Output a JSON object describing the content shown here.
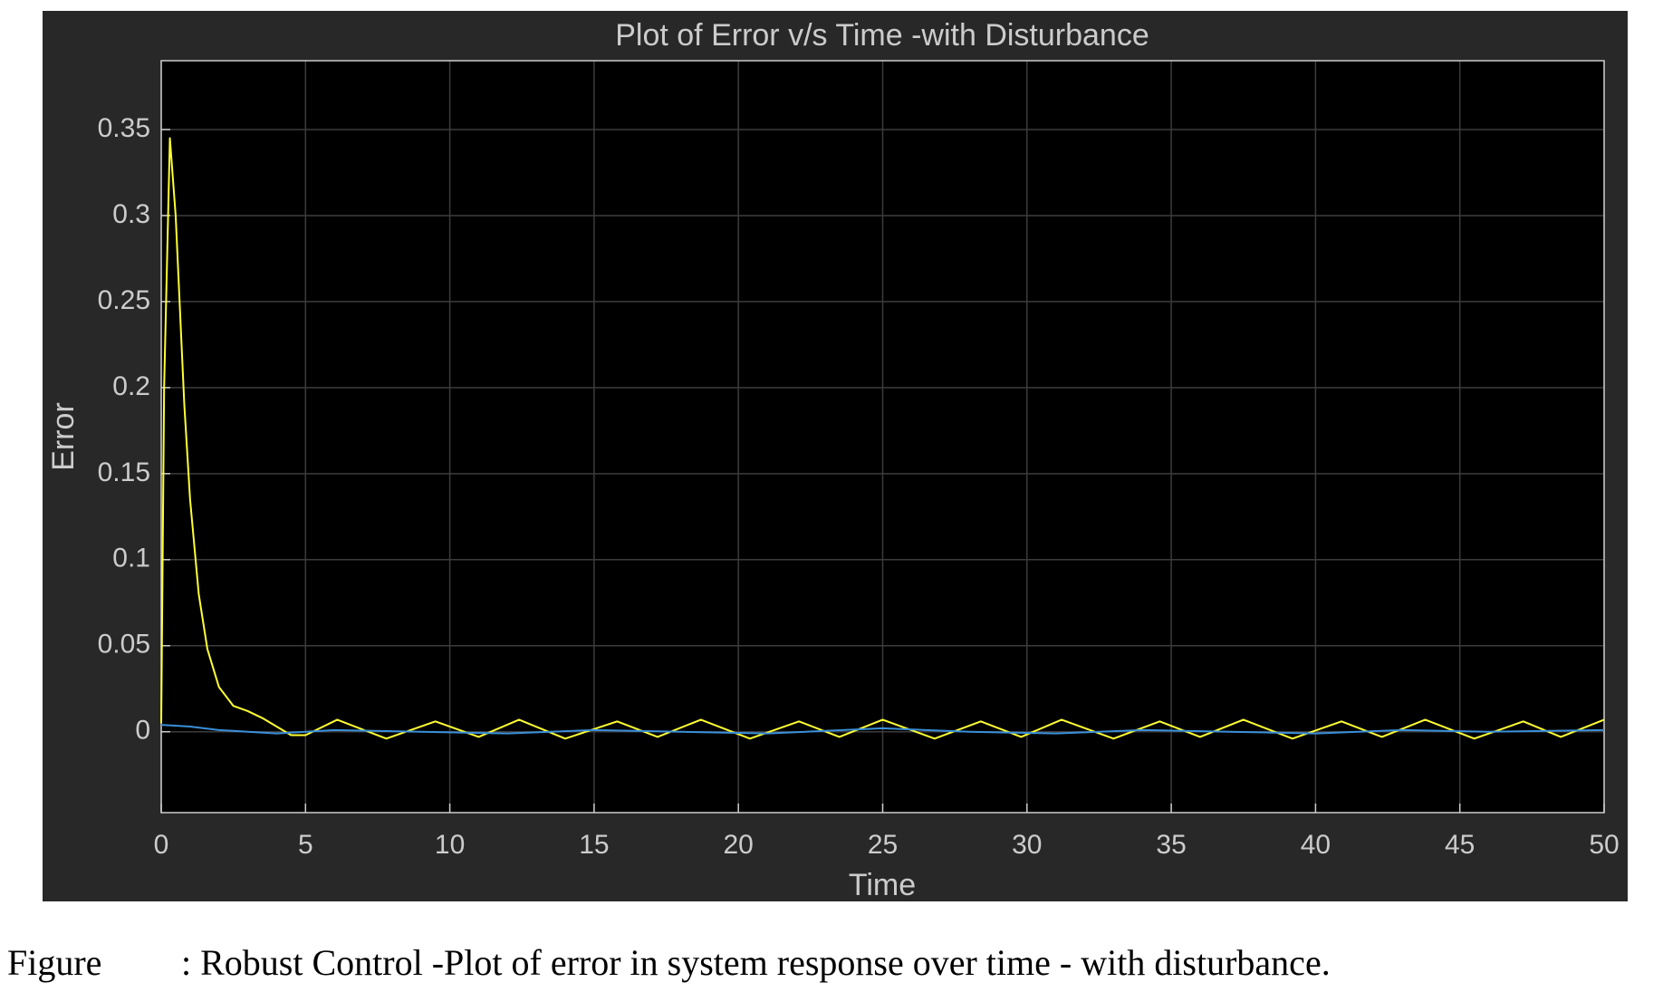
{
  "chart_data": {
    "type": "line",
    "title": "Plot of Error v/s Time -with Disturbance",
    "x_label": "Time",
    "y_label": "Error",
    "xlim": [
      0,
      50
    ],
    "xticks": [
      0,
      5,
      10,
      15,
      20,
      25,
      30,
      35,
      40,
      45,
      50
    ],
    "ylim": [
      -0.047,
      0.39
    ],
    "yticks": [
      0,
      0.05,
      0.1,
      0.15,
      0.2,
      0.25,
      0.3,
      0.35
    ],
    "grid": true,
    "series": [
      {
        "color": "#ffff33",
        "x": [
          0,
          0.1,
          0.3,
          0.5,
          0.8,
          1,
          1.3,
          1.6,
          2,
          2.5,
          3,
          3.5,
          4,
          4.5,
          5,
          6.1,
          7.8,
          9.5,
          11,
          12.4,
          14,
          15.8,
          17.2,
          18.7,
          20.4,
          22.1,
          23.5,
          25,
          26.8,
          28.4,
          29.8,
          31.2,
          33,
          34.6,
          36,
          37.5,
          39.2,
          40.9,
          42.3,
          43.8,
          45.5,
          47.2,
          48.5,
          50
        ],
        "values": [
          0.005,
          0.2,
          0.345,
          0.3,
          0.19,
          0.135,
          0.08,
          0.048,
          0.026,
          0.015,
          0.012,
          0.008,
          0.003,
          -0.002,
          -0.002,
          0.007,
          -0.004,
          0.006,
          -0.003,
          0.007,
          -0.004,
          0.006,
          -0.003,
          0.007,
          -0.004,
          0.006,
          -0.003,
          0.007,
          -0.004,
          0.006,
          -0.003,
          0.007,
          -0.004,
          0.006,
          -0.003,
          0.007,
          -0.004,
          0.006,
          -0.003,
          0.007,
          -0.004,
          0.006,
          -0.003,
          0.007
        ]
      },
      {
        "color": "#3a8fd8",
        "x": [
          0,
          1,
          2,
          3,
          4,
          6,
          9,
          12,
          15,
          18,
          21,
          25,
          28,
          31,
          34,
          37,
          40,
          43,
          46,
          50
        ],
        "values": [
          0.004,
          0.003,
          0.001,
          0,
          -0.001,
          0.001,
          0,
          -0.001,
          0.001,
          0,
          -0.001,
          0.002,
          0,
          -0.001,
          0.001,
          0,
          -0.001,
          0.001,
          0,
          0.001
        ]
      }
    ],
    "figure_label": "Figure",
    "caption": ": Robust Control -Plot of error in system response over time - with disturbance."
  }
}
